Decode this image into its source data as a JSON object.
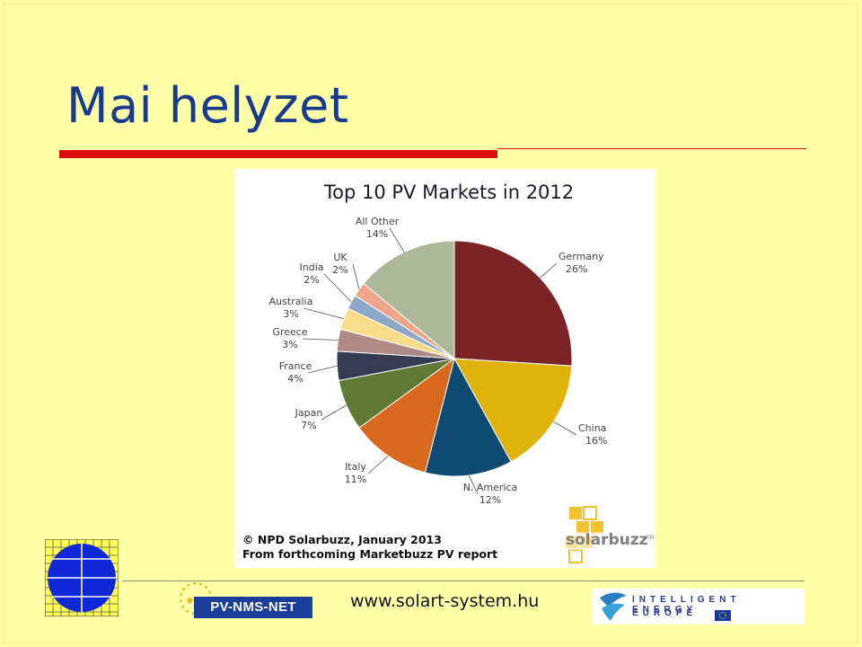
{
  "slide": {
    "title": "Mai helyzet",
    "website": "www.solart-system.hu",
    "pvnms_label": "PV-NMS-NET",
    "iee_line1": "INTELLIGENT ENERGY",
    "iee_line2": "EUROPE"
  },
  "chart_data": {
    "type": "pie",
    "title": "Top 10 PV Markets in 2012",
    "categories": [
      "Germany",
      "China",
      "N. America",
      "Italy",
      "Japan",
      "France",
      "Greece",
      "Australia",
      "India",
      "UK",
      "All Other"
    ],
    "values": [
      26,
      16,
      12,
      11,
      7,
      4,
      3,
      3,
      2,
      2,
      14
    ],
    "value_labels": [
      "26%",
      "16%",
      "12%",
      "11%",
      "7%",
      "4%",
      "3%",
      "3%",
      "2%",
      "2%",
      "14%"
    ],
    "colors": [
      "#7a2428",
      "#e0b30c",
      "#0f4a73",
      "#d8691f",
      "#5e7a34",
      "#363b52",
      "#b08a84",
      "#f7dc8a",
      "#8ea6c8",
      "#eea58a",
      "#adb89a"
    ],
    "source_line1": "© NPD Solarbuzz, January 2013",
    "source_line2": "From forthcoming Marketbuzz PV report",
    "logo_text": "solarbuzz",
    "logo_tm": "TM"
  }
}
